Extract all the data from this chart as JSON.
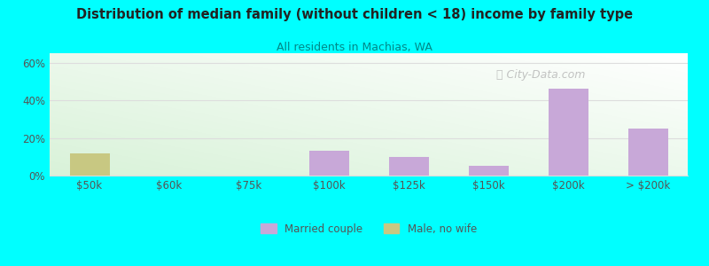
{
  "title": "Distribution of median family (without children < 18) income by family type",
  "subtitle": "All residents in Machias, WA",
  "categories": [
    "$50k",
    "$60k",
    "$75k",
    "$100k",
    "$125k",
    "$150k",
    "$200k",
    "> $200k"
  ],
  "bar_values": [
    12,
    0,
    0,
    13,
    10,
    5,
    46,
    25
  ],
  "bar_colors": [
    "#c8c882",
    "#c8a8d8",
    "#c8a8d8",
    "#c8a8d8",
    "#c8a8d8",
    "#c8a8d8",
    "#c8a8d8",
    "#c8a8d8"
  ],
  "married_color": "#c8a8d8",
  "male_color": "#c8c882",
  "background_color": "#00ffff",
  "title_color": "#222222",
  "subtitle_color": "#008888",
  "tick_color": "#555555",
  "ylim": [
    0,
    65
  ],
  "yticks": [
    0,
    20,
    40,
    60
  ],
  "yticklabels": [
    "0%",
    "20%",
    "40%",
    "60%"
  ],
  "bar_width": 0.5,
  "watermark": "City-Data.com",
  "grid_color": "#dddddd"
}
